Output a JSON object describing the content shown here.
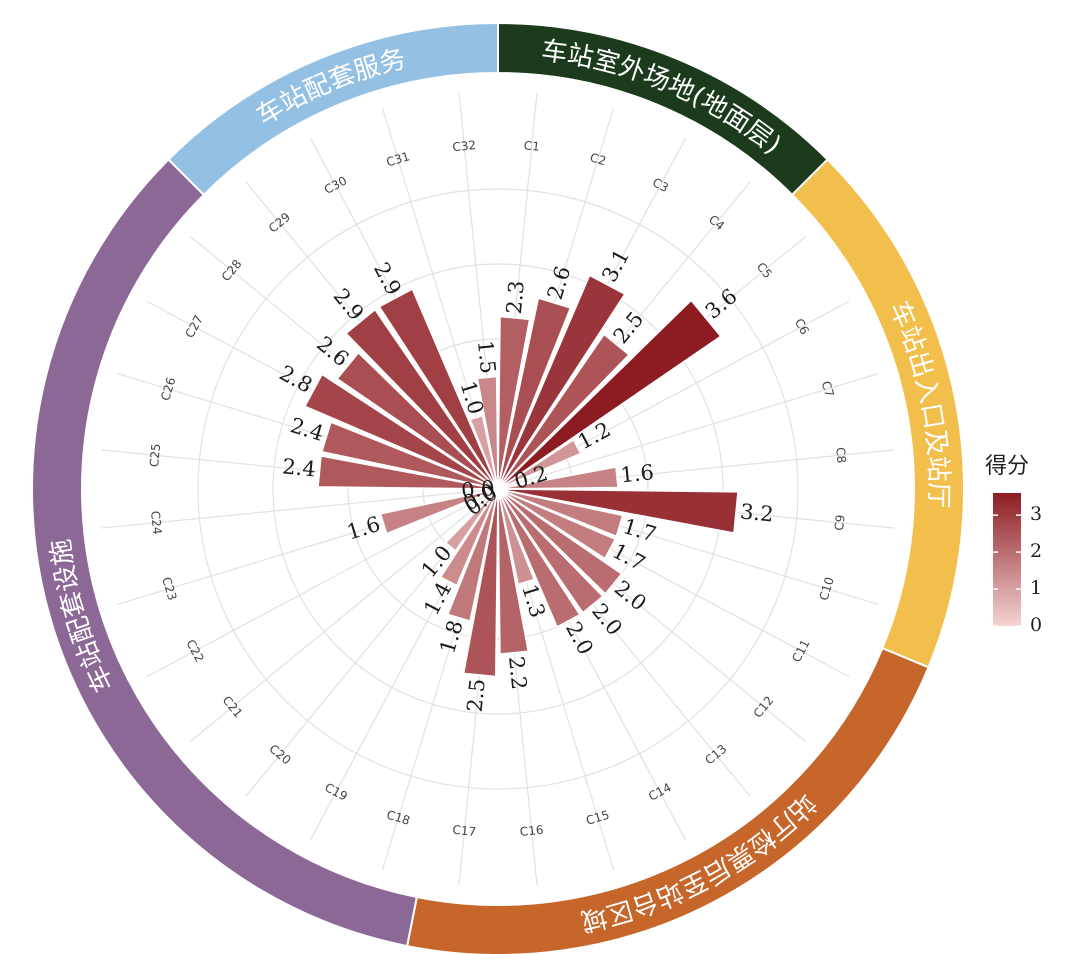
{
  "chart_data": {
    "type": "bar",
    "polar": true,
    "categories": [
      "C1",
      "C2",
      "C3",
      "C4",
      "C5",
      "C6",
      "C7",
      "C8",
      "C9",
      "C10",
      "C11",
      "C12",
      "C13",
      "C14",
      "C15",
      "C16",
      "C17",
      "C18",
      "C19",
      "C20",
      "C21",
      "C22",
      "C23",
      "C24",
      "C25",
      "C26",
      "C27",
      "C28",
      "C29",
      "C30",
      "C31",
      "C32"
    ],
    "values": [
      2.3,
      2.6,
      3.1,
      2.5,
      3.6,
      1.2,
      0.2,
      1.6,
      3.2,
      1.7,
      1.7,
      2.0,
      2.0,
      2.0,
      1.3,
      2.2,
      2.5,
      1.8,
      1.4,
      1.0,
      0.0,
      0.0,
      1.6,
      0.0,
      2.4,
      2.4,
      2.8,
      2.6,
      2.9,
      2.9,
      1.0,
      1.5
    ],
    "value_labels": [
      "2.3",
      "2.6",
      "3.1",
      "2.5",
      "3.6",
      "1.2",
      "0.2",
      "1.6",
      "3.2",
      "1.7",
      "1.7",
      "2.0",
      "2.0",
      "2.0",
      "1.3",
      "2.2",
      "2.5",
      "1.8",
      "1.4",
      "1.0",
      "0.0",
      "0.0",
      "1.6",
      "0.0",
      "2.4",
      "2.4",
      "2.8",
      "2.6",
      "2.9",
      "2.9",
      "1.0",
      "1.5"
    ],
    "groups": [
      {
        "label": "车站室外场地(地面层)",
        "from": 0,
        "to": 4,
        "color": "#1b3b1c"
      },
      {
        "label": "车站出入口及站厅",
        "from": 4,
        "to": 10,
        "color": "#f2bf4d"
      },
      {
        "label": "站厅检票后至站台区域",
        "from": 10,
        "to": 17,
        "color": "#c6662a"
      },
      {
        "label": "车站配套设施",
        "from": 17,
        "to": 28,
        "color": "#8c6897"
      },
      {
        "label": "车站配套服务",
        "from": 28,
        "to": 32,
        "color": "#93c0e3"
      }
    ],
    "legend": {
      "title": "得分",
      "ticks": [
        "3",
        "2",
        "1",
        "0"
      ],
      "tick_values": [
        3,
        2,
        1,
        0
      ],
      "range": [
        0,
        3.6
      ],
      "color_low": "#f4d3d3",
      "color_high": "#8c1c22",
      "position": "right"
    },
    "grid": true
  }
}
